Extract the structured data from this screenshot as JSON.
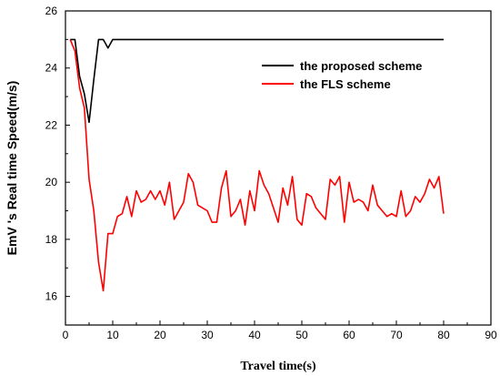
{
  "chart_data": {
    "type": "line",
    "xlabel": "Travel time(s)",
    "ylabel": "EmV 's Real time Speed(m/s)",
    "xlim": [
      0,
      90
    ],
    "ylim": [
      15,
      26
    ],
    "xticks": [
      0,
      10,
      20,
      30,
      40,
      50,
      60,
      70,
      80,
      90
    ],
    "yticks": [
      16,
      18,
      20,
      22,
      24,
      26
    ],
    "grid": false,
    "legend_position": "top-right",
    "series": [
      {
        "name": "the proposed scheme",
        "color": "#000000",
        "x": [
          1,
          2,
          3,
          4,
          5,
          6,
          7,
          8,
          9,
          10,
          20,
          30,
          40,
          50,
          60,
          70,
          80
        ],
        "y": [
          25.0,
          25.0,
          23.7,
          23.1,
          22.1,
          23.6,
          25.0,
          25.0,
          24.7,
          25.0,
          25.0,
          25.0,
          25.0,
          25.0,
          25.0,
          25.0,
          25.0
        ]
      },
      {
        "name": "the FLS scheme",
        "color": "#ff0000",
        "x": [
          1,
          2,
          3,
          4,
          5,
          6,
          7,
          8,
          9,
          10,
          11,
          12,
          13,
          14,
          15,
          16,
          17,
          18,
          19,
          20,
          21,
          22,
          23,
          24,
          25,
          26,
          27,
          28,
          29,
          30,
          31,
          32,
          33,
          34,
          35,
          36,
          37,
          38,
          39,
          40,
          41,
          42,
          43,
          44,
          45,
          46,
          47,
          48,
          49,
          50,
          51,
          52,
          53,
          54,
          55,
          56,
          57,
          58,
          59,
          60,
          61,
          62,
          63,
          64,
          65,
          66,
          67,
          68,
          69,
          70,
          71,
          72,
          73,
          74,
          75,
          76,
          77,
          78,
          79,
          80
        ],
        "y": [
          25.0,
          24.6,
          23.3,
          22.6,
          20.1,
          19.0,
          17.2,
          16.2,
          18.2,
          18.2,
          18.8,
          18.9,
          19.5,
          18.8,
          19.7,
          19.3,
          19.4,
          19.7,
          19.4,
          19.7,
          19.2,
          20.0,
          18.7,
          19.0,
          19.3,
          20.3,
          20.0,
          19.2,
          19.1,
          19.0,
          18.6,
          18.6,
          19.8,
          20.4,
          18.8,
          19.0,
          19.4,
          18.5,
          19.7,
          19.0,
          20.4,
          19.9,
          19.6,
          19.1,
          18.6,
          19.8,
          19.2,
          20.2,
          18.7,
          18.5,
          19.6,
          19.5,
          19.1,
          18.9,
          18.7,
          20.1,
          19.9,
          20.2,
          18.6,
          20.0,
          19.3,
          19.4,
          19.3,
          19.0,
          19.9,
          19.2,
          19.0,
          18.8,
          18.9,
          18.8,
          19.7,
          18.8,
          19.0,
          19.5,
          19.3,
          19.6,
          20.1,
          19.8,
          20.2,
          18.9
        ]
      }
    ]
  }
}
